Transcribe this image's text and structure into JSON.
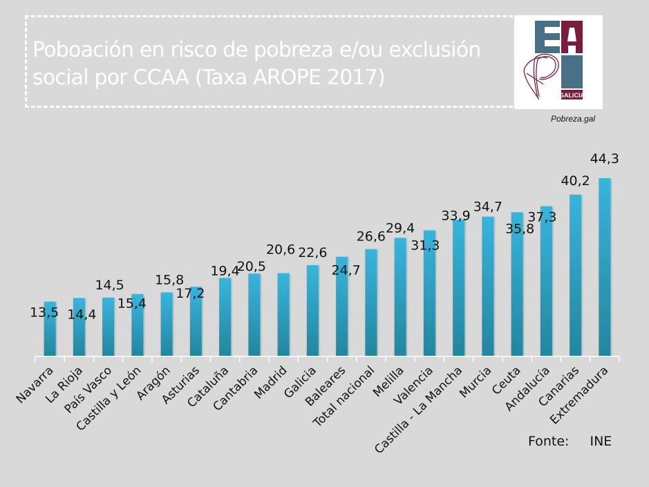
{
  "header": {
    "title": "Poboación en risco de pobreza e/ou exclusión\nsocial por CCAA (Taxa AROPE 2017)",
    "logo": {
      "letters": [
        "E",
        "A",
        "P",
        "N"
      ],
      "subtitle": "GALICIA",
      "credit": "Pobreza.gal",
      "colors": {
        "blue": "#4a7088",
        "maroon": "#7a1c3e"
      }
    }
  },
  "source": {
    "label": "Fonte:",
    "value": "INE"
  },
  "colors": {
    "bar_top": "#38b4dc",
    "bar_bottom": "#23869f",
    "axis": "#ffffff",
    "background": "#d9d9d9"
  },
  "chart_data": {
    "type": "bar",
    "title": "Poboación en risco de pobreza e/ou exclusión social por CCAA (Taxa AROPE 2017)",
    "xlabel": "",
    "ylabel": "",
    "ylim": [
      0,
      44.3
    ],
    "grid": false,
    "legend": "none",
    "categories": [
      "Navarra",
      "La Rioja",
      "País Vasco",
      "Castilla y León",
      "Aragón",
      "Asturias",
      "Cataluña",
      "Cantabria",
      "Madrid",
      "Galicia",
      "Baleares",
      "Total nacional",
      "Melilla",
      "Valencia",
      "Castilla - La Mancha",
      "Murcia",
      "Ceuta",
      "Andalucía",
      "Canarias",
      "Extremadura"
    ],
    "values": [
      13.5,
      14.4,
      14.5,
      15.4,
      15.8,
      17.2,
      19.4,
      20.5,
      20.6,
      22.6,
      24.7,
      26.6,
      29.4,
      31.3,
      33.9,
      34.7,
      35.8,
      37.3,
      40.2,
      44.3
    ],
    "value_labels": [
      "13,5",
      "14,4",
      "14,5",
      "15,4",
      "15,8",
      "17,2",
      "19,4",
      "20,5",
      "20,6",
      "22,6",
      "24,7",
      "26,6",
      "29,4",
      "31,3",
      "33,9",
      "34,7",
      "35,8",
      "37,3",
      "40,2",
      "44,3"
    ]
  }
}
